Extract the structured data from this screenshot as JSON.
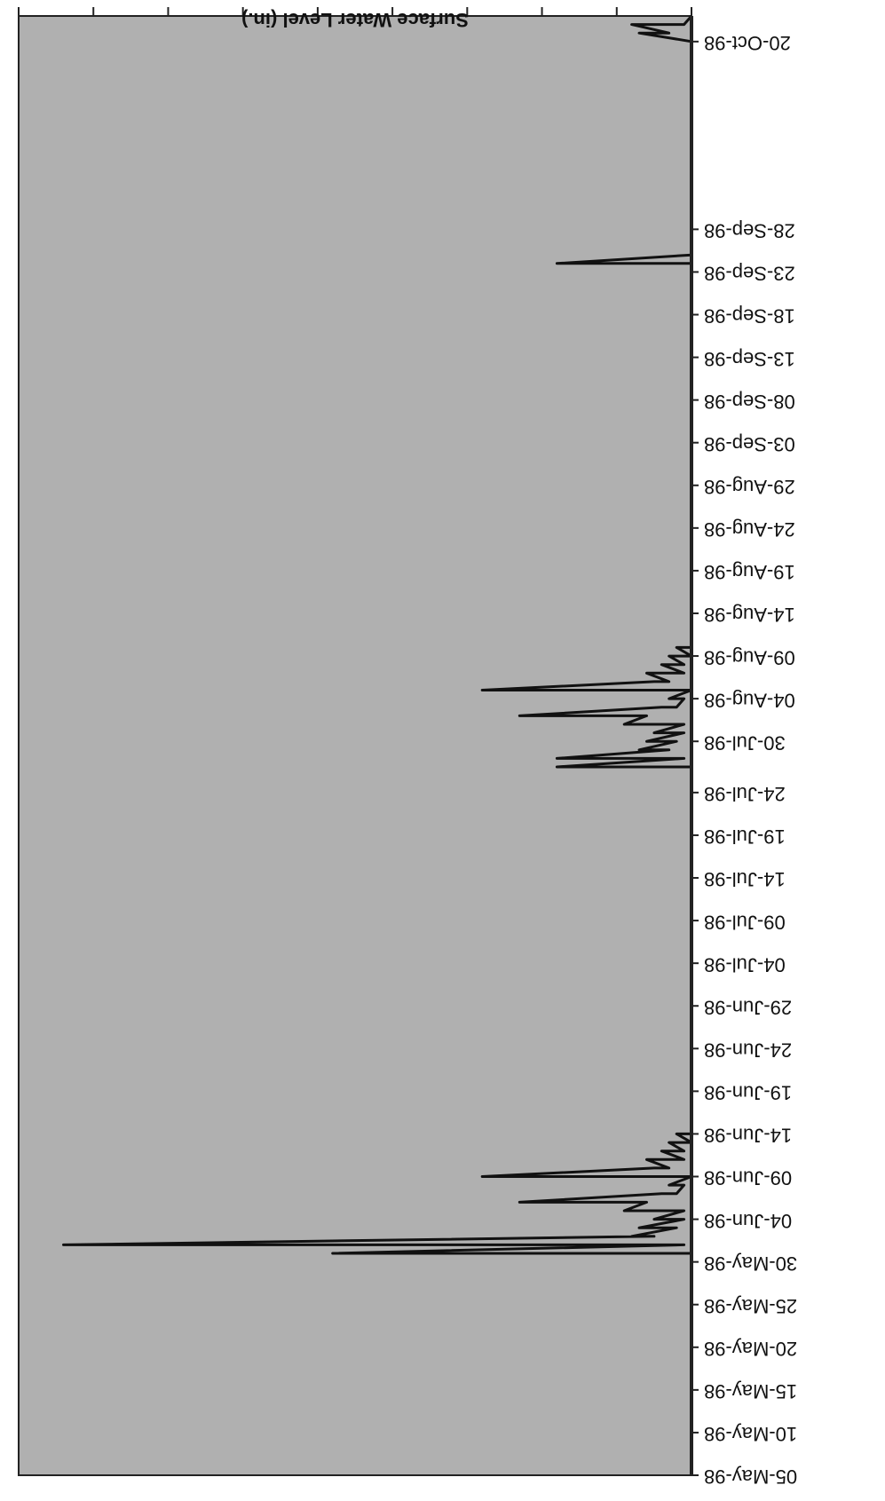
{
  "chart_data": {
    "type": "line",
    "title": "",
    "xlabel": "",
    "ylabel": "Surface Water Level (in.)",
    "ylim": [
      0,
      9
    ],
    "yticks": [
      0,
      1,
      2,
      3,
      4,
      5,
      6,
      7,
      8,
      9
    ],
    "xlim": [
      "05-May-98",
      "23-Oct-98"
    ],
    "xtick_labels": [
      "05-May-98",
      "10-May-98",
      "15-May-98",
      "20-May-98",
      "25-May-98",
      "30-May-98",
      "04-Jun-98",
      "09-Jun-98",
      "14-Jun-98",
      "19-Jun-98",
      "24-Jun-98",
      "29-Jun-98",
      "04-Jul-98",
      "09-Jul-98",
      "14-Jul-98",
      "19-Jul-98",
      "24-Jul-98",
      "30-Jul-98",
      "04-Aug-98",
      "09-Aug-98",
      "14-Aug-98",
      "19-Aug-98",
      "24-Aug-98",
      "29-Aug-98",
      "03-Sep-98",
      "08-Sep-98",
      "13-Sep-98",
      "18-Sep-98",
      "23-Sep-98",
      "28-Sep-98",
      "20-Oct-98"
    ],
    "grid": false,
    "legend": "none",
    "orientation": "rotated-180",
    "colors": {
      "plot_bg": "#b0b0b0",
      "line": "#111111"
    },
    "series": [
      {
        "x": [
          "05-May-98",
          "31-May-98",
          "31-May-98",
          "01-Jun-98",
          "01-Jun-98",
          "02-Jun-98",
          "02-Jun-98",
          "03-Jun-98",
          "03-Jun-98",
          "04-Jun-98",
          "04-Jun-98",
          "05-Jun-98",
          "05-Jun-98",
          "06-Jun-98",
          "06-Jun-98",
          "07-Jun-98",
          "07-Jun-98",
          "08-Jun-98",
          "08-Jun-98",
          "09-Jun-98",
          "09-Jun-98",
          "10-Jun-98",
          "10-Jun-98",
          "11-Jun-98",
          "11-Jun-98",
          "12-Jun-98",
          "12-Jun-98",
          "13-Jun-98",
          "13-Jun-98",
          "14-Jun-98",
          "14-Jun-98",
          "27-Jul-98",
          "27-Jul-98",
          "28-Jul-98",
          "28-Jul-98",
          "29-Jul-98",
          "29-Jul-98",
          "30-Jul-98",
          "30-Jul-98",
          "31-Jul-98",
          "31-Jul-98",
          "01-Aug-98",
          "01-Aug-98",
          "02-Aug-98",
          "02-Aug-98",
          "03-Aug-98",
          "03-Aug-98",
          "04-Aug-98",
          "04-Aug-98",
          "05-Aug-98",
          "05-Aug-98",
          "06-Aug-98",
          "06-Aug-98",
          "07-Aug-98",
          "07-Aug-98",
          "08-Aug-98",
          "08-Aug-98",
          "09-Aug-98",
          "09-Aug-98",
          "10-Aug-98",
          "10-Aug-98",
          "11-Aug-98",
          "11-Aug-98",
          "12-Aug-98",
          "12-Aug-98",
          "24-Sep-98",
          "24-Sep-98",
          "25-Sep-98",
          "20-Oct-98",
          "21-Oct-98",
          "21-Oct-98",
          "22-Oct-98",
          "22-Oct-98",
          "23-Oct-98"
        ],
        "y": [
          0,
          0,
          4.8,
          0.1,
          8.4,
          0.5,
          0.8,
          0.2,
          0.7,
          0.1,
          0.5,
          0.1,
          0.9,
          0.6,
          2.3,
          0.4,
          0.2,
          0.1,
          0.3,
          0,
          2.8,
          0.5,
          0.3,
          0.6,
          0.1,
          0.4,
          0.1,
          0.3,
          0.0,
          0.2,
          0,
          0,
          1.8,
          0.1,
          1.8,
          0.3,
          0.7,
          0.2,
          0.6,
          0.1,
          0.5,
          0.1,
          0.9,
          0.6,
          2.3,
          0.4,
          0.2,
          0.1,
          0.3,
          0,
          2.8,
          0.5,
          0.3,
          0.6,
          0.1,
          0.4,
          0.1,
          0.3,
          0.0,
          0.2,
          0,
          0,
          0,
          0,
          0,
          0,
          1.8,
          0,
          0,
          0.7,
          0.3,
          0.8,
          0.1,
          0
        ]
      }
    ]
  }
}
